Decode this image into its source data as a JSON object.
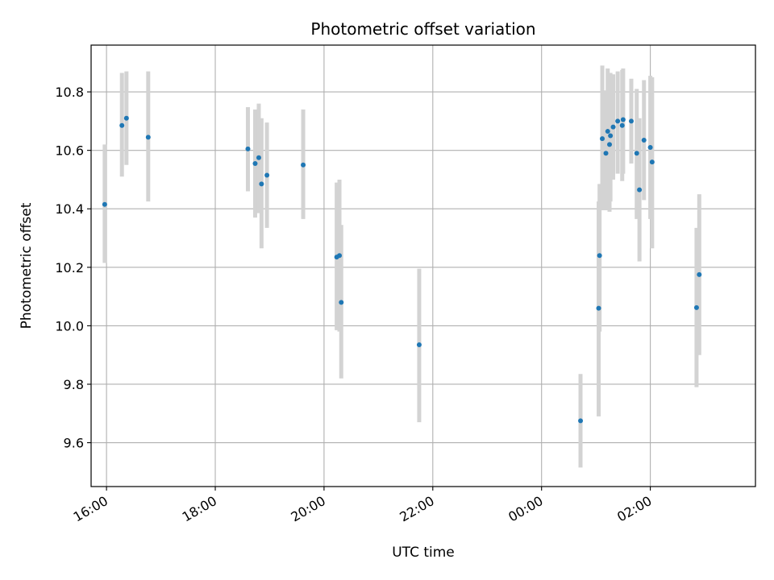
{
  "chart_data": {
    "type": "scatter",
    "title": "Photometric offset variation",
    "xlabel": "UTC time",
    "ylabel": "Photometric offset",
    "x_axis": {
      "kind": "time",
      "range": [
        "15:43",
        "03:56 +1d"
      ],
      "ticks": [
        "16:00",
        "18:00",
        "20:00",
        "22:00",
        "00:00",
        "02:00"
      ]
    },
    "y_axis": {
      "range": [
        9.45,
        10.96
      ],
      "ticks": [
        "9.6",
        "9.8",
        "10.0",
        "10.2",
        "10.4",
        "10.6",
        "10.8"
      ]
    },
    "grid": true,
    "legend": "none",
    "colors": {
      "points": "#1f77b4",
      "error_bars": "#d3d3d3",
      "grid": "#b0b0b0"
    },
    "series": [
      {
        "points": [
          {
            "time": "15:58",
            "y": 10.415,
            "ymin": 10.215,
            "ymax": 10.62
          },
          {
            "time": "16:17",
            "y": 10.685,
            "ymin": 10.51,
            "ymax": 10.865
          },
          {
            "time": "16:22",
            "y": 10.71,
            "ymin": 10.55,
            "ymax": 10.87
          },
          {
            "time": "16:46",
            "y": 10.645,
            "ymin": 10.425,
            "ymax": 10.87
          },
          {
            "time": "18:36",
            "y": 10.605,
            "ymin": 10.46,
            "ymax": 10.748
          },
          {
            "time": "18:44",
            "y": 10.555,
            "ymin": 10.37,
            "ymax": 10.74
          },
          {
            "time": "18:48",
            "y": 10.575,
            "ymin": 10.385,
            "ymax": 10.76
          },
          {
            "time": "18:51",
            "y": 10.485,
            "ymin": 10.265,
            "ymax": 10.71
          },
          {
            "time": "18:57",
            "y": 10.515,
            "ymin": 10.335,
            "ymax": 10.695
          },
          {
            "time": "19:37",
            "y": 10.55,
            "ymin": 10.365,
            "ymax": 10.74
          },
          {
            "time": "20:14",
            "y": 10.235,
            "ymin": 9.985,
            "ymax": 10.49
          },
          {
            "time": "20:17",
            "y": 10.24,
            "ymin": 9.98,
            "ymax": 10.5
          },
          {
            "time": "20:19",
            "y": 10.08,
            "ymin": 9.82,
            "ymax": 10.345
          },
          {
            "time": "21:45",
            "y": 9.935,
            "ymin": 9.67,
            "ymax": 10.195
          },
          {
            "time": "00:43",
            "y": 9.675,
            "ymin": 9.515,
            "ymax": 9.835
          },
          {
            "time": "01:03",
            "y": 10.06,
            "ymin": 9.69,
            "ymax": 10.425
          },
          {
            "time": "01:04",
            "y": 10.24,
            "ymin": 9.98,
            "ymax": 10.485
          },
          {
            "time": "01:07",
            "y": 10.64,
            "ymin": 10.395,
            "ymax": 10.89
          },
          {
            "time": "01:11",
            "y": 10.59,
            "ymin": 10.395,
            "ymax": 10.805
          },
          {
            "time": "01:13",
            "y": 10.665,
            "ymin": 10.46,
            "ymax": 10.88
          },
          {
            "time": "01:15",
            "y": 10.62,
            "ymin": 10.39,
            "ymax": 10.855
          },
          {
            "time": "01:16",
            "y": 10.65,
            "ymin": 10.425,
            "ymax": 10.865
          },
          {
            "time": "01:19",
            "y": 10.68,
            "ymin": 10.5,
            "ymax": 10.86
          },
          {
            "time": "01:24",
            "y": 10.7,
            "ymin": 10.52,
            "ymax": 10.87
          },
          {
            "time": "01:29",
            "y": 10.685,
            "ymin": 10.495,
            "ymax": 10.875
          },
          {
            "time": "01:30",
            "y": 10.705,
            "ymin": 10.52,
            "ymax": 10.88
          },
          {
            "time": "01:39",
            "y": 10.7,
            "ymin": 10.555,
            "ymax": 10.845
          },
          {
            "time": "01:45",
            "y": 10.59,
            "ymin": 10.365,
            "ymax": 10.81
          },
          {
            "time": "01:48",
            "y": 10.465,
            "ymin": 10.22,
            "ymax": 10.71
          },
          {
            "time": "01:53",
            "y": 10.635,
            "ymin": 10.43,
            "ymax": 10.84
          },
          {
            "time": "02:00",
            "y": 10.61,
            "ymin": 10.365,
            "ymax": 10.855
          },
          {
            "time": "02:02",
            "y": 10.56,
            "ymin": 10.265,
            "ymax": 10.85
          },
          {
            "time": "02:51",
            "y": 10.062,
            "ymin": 9.79,
            "ymax": 10.335
          },
          {
            "time": "02:54",
            "y": 10.175,
            "ymin": 9.9,
            "ymax": 10.45
          }
        ]
      }
    ]
  }
}
